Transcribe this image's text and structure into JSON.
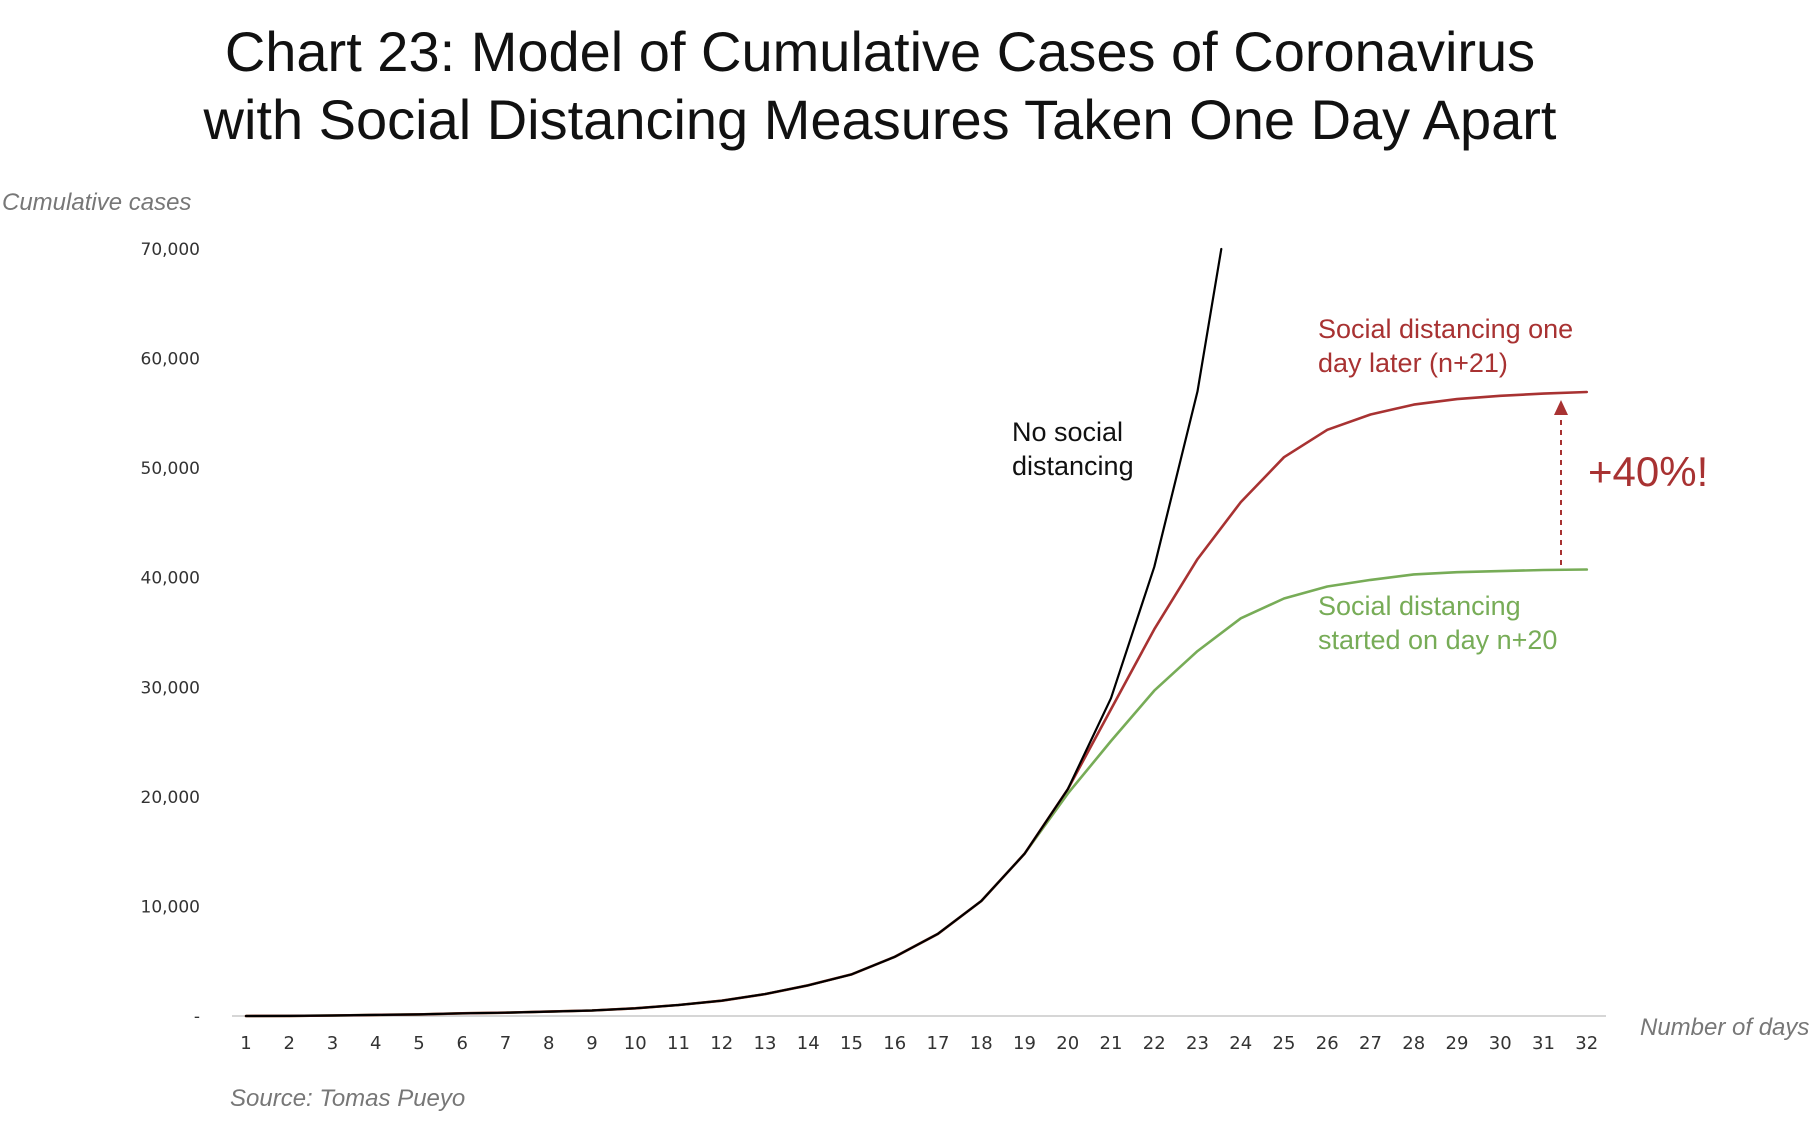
{
  "chart_data": {
    "type": "line",
    "title_line1": "Chart 23: Model of Cumulative Cases of Coronavirus",
    "title_line2": "with Social Distancing Measures Taken One Day Apart",
    "ylabel": "Cumulative cases",
    "xlabel": "Number of days",
    "source": "Source: Tomas Pueyo",
    "x": [
      1,
      2,
      3,
      4,
      5,
      6,
      7,
      8,
      9,
      10,
      11,
      12,
      13,
      14,
      15,
      16,
      17,
      18,
      19,
      20,
      21,
      22,
      23,
      24,
      25,
      26,
      27,
      28,
      29,
      30,
      31,
      32
    ],
    "ylim": [
      0,
      70000
    ],
    "yticks": [
      0,
      10000,
      20000,
      30000,
      40000,
      50000,
      60000,
      70000
    ],
    "ytick_labels": [
      "-",
      "10,000",
      "20,000",
      "30,000",
      "40,000",
      "50,000",
      "60,000",
      "70,000"
    ],
    "grid": false,
    "legend": "none (inline labels)",
    "series": [
      {
        "key": "no_sd",
        "color": "#000000",
        "x": [
          1,
          2,
          3,
          4,
          5,
          6,
          7,
          8,
          9,
          10,
          11,
          12,
          13,
          14,
          15,
          16,
          17,
          18,
          19,
          20,
          21,
          22,
          23,
          23.55
        ],
        "values": [
          0,
          10,
          50,
          100,
          150,
          250,
          300,
          400,
          500,
          700,
          1000,
          1400,
          2000,
          2800,
          3800,
          5400,
          7500,
          10500,
          14800,
          20700,
          29000,
          41000,
          57000,
          70000
        ]
      },
      {
        "key": "sd_day21",
        "color": "#a83232",
        "x": [
          1,
          2,
          3,
          4,
          5,
          6,
          7,
          8,
          9,
          10,
          11,
          12,
          13,
          14,
          15,
          16,
          17,
          18,
          19,
          20,
          21,
          22,
          23,
          24,
          25,
          26,
          27,
          28,
          29,
          30,
          31,
          32
        ],
        "values": [
          0,
          10,
          50,
          100,
          150,
          250,
          300,
          400,
          500,
          700,
          1000,
          1400,
          2000,
          2800,
          3800,
          5400,
          7500,
          10500,
          14800,
          20700,
          28000,
          35300,
          41700,
          46900,
          51000,
          53500,
          54900,
          55800,
          56300,
          56600,
          56800,
          56950
        ]
      },
      {
        "key": "sd_day20",
        "color": "#77ac57",
        "x": [
          1,
          2,
          3,
          4,
          5,
          6,
          7,
          8,
          9,
          10,
          11,
          12,
          13,
          14,
          15,
          16,
          17,
          18,
          19,
          20,
          21,
          22,
          23,
          24,
          25,
          26,
          27,
          28,
          29,
          30,
          31,
          32
        ],
        "values": [
          0,
          10,
          50,
          100,
          150,
          250,
          300,
          400,
          500,
          700,
          1000,
          1400,
          2000,
          2800,
          3800,
          5400,
          7500,
          10500,
          14800,
          20300,
          25100,
          29700,
          33300,
          36300,
          38100,
          39200,
          39800,
          40300,
          40500,
          40600,
          40700,
          40750
        ]
      }
    ],
    "annotations": {
      "no_sd_line1": "No social",
      "no_sd_line2": "distancing",
      "later_line1": "Social distancing one",
      "later_line2": "day later (n+21)",
      "earlier_line1": "Social distancing",
      "earlier_line2": "started on day n+20",
      "increase": "+40%!",
      "increase_color": "#a83232"
    }
  }
}
